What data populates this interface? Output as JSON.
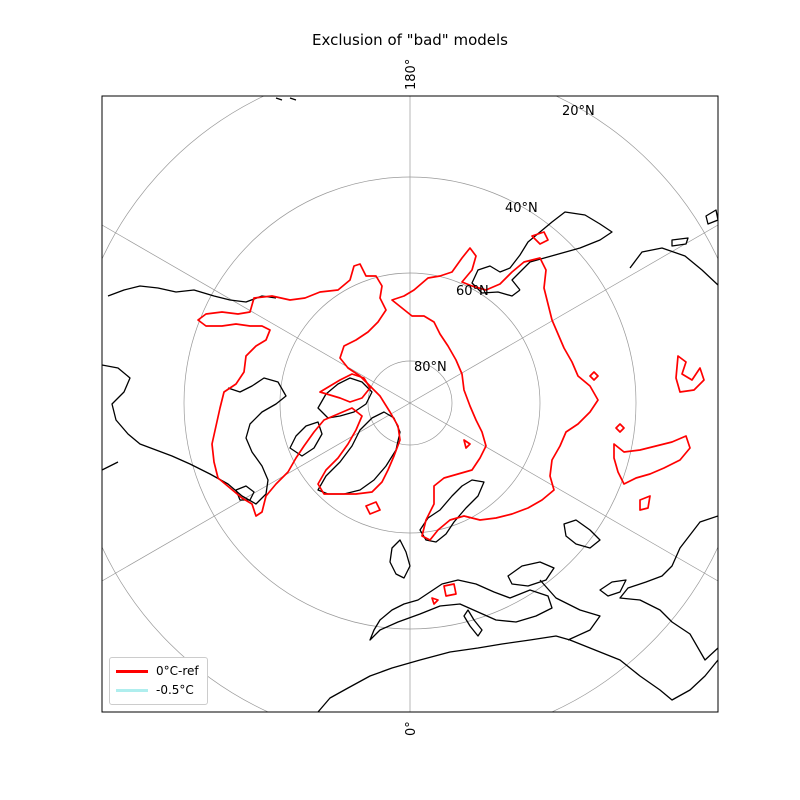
{
  "title": "Exclusion of \"bad\" models",
  "projection": "north-polar-stereographic",
  "meridian_labels": {
    "top": "180°",
    "bottom": "0°"
  },
  "latitude_labels": [
    "80°N",
    "60°N",
    "40°N",
    "20°N"
  ],
  "legend": {
    "placement": "lower-left",
    "items": [
      {
        "label": "0°C-ref",
        "color": "#ff0000"
      },
      {
        "label": "-0.5°C",
        "color": "#afeeee"
      }
    ]
  },
  "colors": {
    "coastline": "#000000",
    "contour_ref": "#ff0000",
    "contour_alt": "#afeeee",
    "graticule": "#999999"
  }
}
